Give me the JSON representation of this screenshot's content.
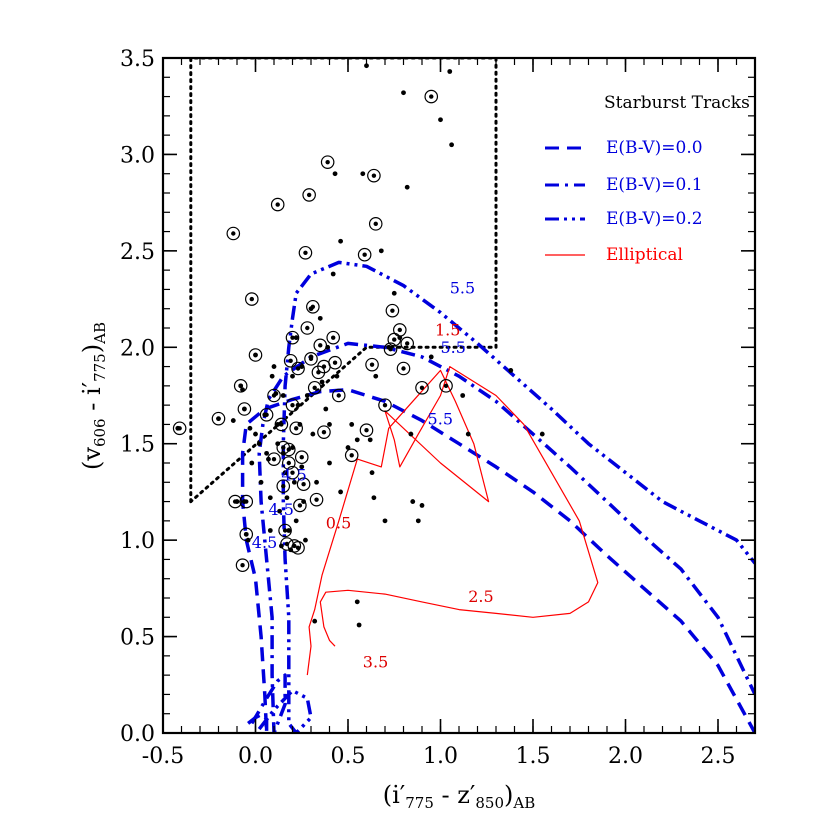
{
  "chart_data": {
    "type": "scatter",
    "title": "",
    "xlabel": {
      "main": "(i′",
      "s1": "775",
      "mid": " - z′",
      "s2": "850",
      "end": ")",
      "s3": "AB"
    },
    "ylabel": {
      "main": "(v",
      "s1": "606",
      "mid": " - i′",
      "s2": "775",
      "end": ")",
      "s3": "AB"
    },
    "xlim": [
      -0.5,
      2.7
    ],
    "ylim": [
      0.0,
      3.5
    ],
    "x_ticks": [
      "-0.5",
      "0.0",
      "0.5",
      "1.0",
      "1.5",
      "2.0",
      "2.5"
    ],
    "y_ticks": [
      "0.0",
      "0.5",
      "1.0",
      "1.5",
      "2.0",
      "2.5",
      "3.0",
      "3.5"
    ],
    "x_tick_values": [
      -0.5,
      0.0,
      0.5,
      1.0,
      1.5,
      2.0,
      2.5
    ],
    "y_tick_values": [
      0.0,
      0.5,
      1.0,
      1.5,
      2.0,
      2.5,
      3.0,
      3.5
    ],
    "legend": {
      "title": "Starburst Tracks",
      "placement": "top-right",
      "entries": [
        {
          "label": "E(B-V)=0.0",
          "color": "#0000dd",
          "style": "dashed"
        },
        {
          "label": "E(B-V)=0.1",
          "color": "#0000dd",
          "style": "dash-dot"
        },
        {
          "label": "E(B-V)=0.2",
          "color": "#0000dd",
          "style": "dash-dot-dot"
        },
        {
          "label": "Elliptical",
          "color": "#ff0000",
          "style": "solid"
        }
      ]
    },
    "series": [
      {
        "name": "E(B-V)=0.0",
        "color": "#0000dd",
        "style": "dashed",
        "width": 3.5,
        "points": [
          [
            -0.04,
            0.05
          ],
          [
            0.0,
            0.08
          ],
          [
            0.04,
            0.1
          ],
          [
            0.06,
            0.07
          ],
          [
            0.06,
            0.0
          ],
          [
            0.05,
            0.2
          ],
          [
            0.03,
            0.5
          ],
          [
            0.0,
            0.8
          ],
          [
            -0.05,
            1.0
          ],
          [
            -0.07,
            1.2
          ],
          [
            -0.07,
            1.45
          ],
          [
            -0.05,
            1.6
          ],
          [
            0.05,
            1.68
          ],
          [
            0.2,
            1.73
          ],
          [
            0.35,
            1.77
          ],
          [
            0.5,
            1.78
          ],
          [
            0.7,
            1.72
          ],
          [
            0.9,
            1.62
          ],
          [
            1.1,
            1.5
          ],
          [
            1.3,
            1.38
          ],
          [
            1.5,
            1.25
          ],
          [
            1.7,
            1.1
          ],
          [
            1.9,
            0.92
          ],
          [
            2.1,
            0.75
          ],
          [
            2.3,
            0.58
          ],
          [
            2.5,
            0.35
          ],
          [
            2.7,
            0.0
          ]
        ]
      },
      {
        "name": "E(B-V)=0.1",
        "color": "#0000dd",
        "style": "dash-dot",
        "width": 3.5,
        "points": [
          [
            -0.02,
            0.05
          ],
          [
            0.06,
            0.18
          ],
          [
            0.12,
            0.27
          ],
          [
            0.16,
            0.3
          ],
          [
            0.16,
            0.15
          ],
          [
            0.12,
            0.05
          ],
          [
            0.1,
            0.0
          ],
          [
            0.09,
            0.3
          ],
          [
            0.09,
            0.6
          ],
          [
            0.06,
            0.9
          ],
          [
            0.03,
            1.2
          ],
          [
            0.02,
            1.45
          ],
          [
            0.04,
            1.6
          ],
          [
            0.07,
            1.73
          ],
          [
            0.15,
            1.85
          ],
          [
            0.3,
            1.95
          ],
          [
            0.5,
            2.02
          ],
          [
            0.7,
            2.0
          ],
          [
            0.9,
            1.95
          ],
          [
            1.1,
            1.85
          ],
          [
            1.3,
            1.72
          ],
          [
            1.5,
            1.55
          ],
          [
            1.7,
            1.38
          ],
          [
            1.9,
            1.2
          ],
          [
            2.1,
            1.02
          ],
          [
            2.3,
            0.85
          ],
          [
            2.5,
            0.6
          ],
          [
            2.7,
            0.2
          ]
        ]
      },
      {
        "name": "E(B-V)=0.2",
        "color": "#0000dd",
        "style": "dash-dot-dot",
        "width": 3.5,
        "points": [
          [
            0.02,
            0.02
          ],
          [
            0.1,
            0.12
          ],
          [
            0.2,
            0.22
          ],
          [
            0.28,
            0.18
          ],
          [
            0.3,
            0.08
          ],
          [
            0.22,
            0.0
          ],
          [
            0.18,
            0.05
          ],
          [
            0.18,
            0.3
          ],
          [
            0.18,
            0.6
          ],
          [
            0.16,
            0.9
          ],
          [
            0.15,
            1.2
          ],
          [
            0.15,
            1.5
          ],
          [
            0.16,
            1.8
          ],
          [
            0.18,
            2.0
          ],
          [
            0.2,
            2.15
          ],
          [
            0.22,
            2.28
          ],
          [
            0.3,
            2.38
          ],
          [
            0.45,
            2.44
          ],
          [
            0.6,
            2.42
          ],
          [
            0.8,
            2.32
          ],
          [
            1.0,
            2.18
          ],
          [
            1.2,
            2.02
          ],
          [
            1.4,
            1.85
          ],
          [
            1.6,
            1.68
          ],
          [
            1.8,
            1.5
          ],
          [
            2.0,
            1.35
          ],
          [
            2.2,
            1.2
          ],
          [
            2.4,
            1.1
          ],
          [
            2.6,
            1.0
          ],
          [
            2.7,
            0.88
          ]
        ]
      },
      {
        "name": "Elliptical",
        "color": "#ff0000",
        "style": "solid",
        "width": 1.2,
        "points": [
          [
            0.43,
            0.45
          ],
          [
            0.4,
            0.48
          ],
          [
            0.37,
            0.55
          ],
          [
            0.35,
            0.68
          ],
          [
            0.38,
            0.73
          ],
          [
            0.5,
            0.74
          ],
          [
            0.7,
            0.72
          ],
          [
            0.9,
            0.68
          ],
          [
            1.1,
            0.64
          ],
          [
            1.3,
            0.62
          ],
          [
            1.5,
            0.6
          ],
          [
            1.7,
            0.62
          ],
          [
            1.8,
            0.68
          ],
          [
            1.85,
            0.78
          ],
          [
            1.75,
            1.1
          ],
          [
            1.6,
            1.35
          ],
          [
            1.45,
            1.6
          ],
          [
            1.3,
            1.75
          ],
          [
            1.1,
            1.87
          ],
          [
            1.05,
            1.9
          ],
          [
            1.0,
            1.75
          ],
          [
            0.88,
            1.55
          ],
          [
            0.78,
            1.38
          ],
          [
            0.75,
            1.52
          ],
          [
            0.7,
            1.67
          ],
          [
            1.0,
            1.4
          ],
          [
            1.26,
            1.2
          ],
          [
            1.18,
            1.5
          ],
          [
            1.08,
            1.72
          ],
          [
            1.0,
            1.88
          ],
          [
            0.85,
            1.72
          ],
          [
            0.72,
            1.58
          ],
          [
            0.68,
            1.38
          ],
          [
            0.55,
            1.42
          ],
          [
            0.45,
            1.1
          ],
          [
            0.36,
            0.82
          ],
          [
            0.32,
            0.64
          ],
          [
            0.29,
            0.55
          ],
          [
            0.3,
            0.45
          ],
          [
            0.28,
            0.3
          ]
        ]
      }
    ],
    "selection_box": {
      "style": "dotted",
      "color": "#000000",
      "points": [
        [
          -0.35,
          1.2
        ],
        [
          -0.35,
          3.5
        ],
        [
          -0.35,
          3.5
        ],
        [
          1.3,
          3.5
        ],
        [
          1.3,
          2.0
        ],
        [
          0.6,
          2.0
        ],
        [
          -0.35,
          1.2
        ]
      ]
    },
    "track_labels": [
      {
        "text": "5.5",
        "x": 1.05,
        "y": 2.28,
        "color": "#0000dd"
      },
      {
        "text": "5.5",
        "x": 1.0,
        "y": 1.97,
        "color": "#0000dd"
      },
      {
        "text": "5.5",
        "x": 0.93,
        "y": 1.6,
        "color": "#0000dd"
      },
      {
        "text": "4.5",
        "x": 0.14,
        "y": 1.31,
        "color": "#0000dd"
      },
      {
        "text": "4.5",
        "x": 0.07,
        "y": 1.13,
        "color": "#0000dd"
      },
      {
        "text": "4.5",
        "x": -0.02,
        "y": 0.96,
        "color": "#0000dd"
      },
      {
        "text": "1.5",
        "x": 0.97,
        "y": 2.06,
        "color": "#dd0000"
      },
      {
        "text": "0.5",
        "x": 0.38,
        "y": 1.06,
        "color": "#dd0000"
      },
      {
        "text": "2.5",
        "x": 1.15,
        "y": 0.68,
        "color": "#dd0000"
      },
      {
        "text": "3.5",
        "x": 0.58,
        "y": 0.34,
        "color": "#dd0000"
      }
    ],
    "dots": [
      [
        -0.42,
        1.58
      ],
      [
        -0.2,
        1.63
      ],
      [
        -0.12,
        1.62
      ],
      [
        -0.1,
        1.2
      ],
      [
        -0.08,
        1.8
      ],
      [
        -0.07,
        1.78
      ],
      [
        -0.06,
        1.68
      ],
      [
        -0.06,
        1.2
      ],
      [
        -0.05,
        1.03
      ],
      [
        -0.04,
        1.0
      ],
      [
        -0.03,
        1.58
      ],
      [
        -0.02,
        1.4
      ],
      [
        0.0,
        1.55
      ],
      [
        0.0,
        1.96
      ],
      [
        0.02,
        1.5
      ],
      [
        0.03,
        1.3
      ],
      [
        0.05,
        1.65
      ],
      [
        0.06,
        1.45
      ],
      [
        0.07,
        1.42
      ],
      [
        0.08,
        1.22
      ],
      [
        0.08,
        1.05
      ],
      [
        0.09,
        1.85
      ],
      [
        0.1,
        1.9
      ],
      [
        0.11,
        1.76
      ],
      [
        0.12,
        1.6
      ],
      [
        0.12,
        1.5
      ],
      [
        0.13,
        1.15
      ],
      [
        0.14,
        0.97
      ],
      [
        0.15,
        1.75
      ],
      [
        0.15,
        1.45
      ],
      [
        0.16,
        1.35
      ],
      [
        0.17,
        1.22
      ],
      [
        0.18,
        1.05
      ],
      [
        0.19,
        0.95
      ],
      [
        0.2,
        1.85
      ],
      [
        0.2,
        1.48
      ],
      [
        0.21,
        1.3
      ],
      [
        0.22,
        1.1
      ],
      [
        0.22,
        2.05
      ],
      [
        0.23,
        1.7
      ],
      [
        0.24,
        1.6
      ],
      [
        0.25,
        1.9
      ],
      [
        0.25,
        1.38
      ],
      [
        0.26,
        1.2
      ],
      [
        0.27,
        1.0
      ],
      [
        0.28,
        1.75
      ],
      [
        0.3,
        1.95
      ],
      [
        0.3,
        2.2
      ],
      [
        0.31,
        1.55
      ],
      [
        0.33,
        1.3
      ],
      [
        0.35,
        2.15
      ],
      [
        0.36,
        1.82
      ],
      [
        0.38,
        1.68
      ],
      [
        0.39,
        2.0
      ],
      [
        0.4,
        1.4
      ],
      [
        0.42,
        2.38
      ],
      [
        0.43,
        2.9
      ],
      [
        0.44,
        1.85
      ],
      [
        0.46,
        2.55
      ],
      [
        0.46,
        1.25
      ],
      [
        0.5,
        1.48
      ],
      [
        0.52,
        1.6
      ],
      [
        0.55,
        1.52
      ],
      [
        0.55,
        0.68
      ],
      [
        0.56,
        0.56
      ],
      [
        0.58,
        2.9
      ],
      [
        0.6,
        3.46
      ],
      [
        0.62,
        1.52
      ],
      [
        0.63,
        1.35
      ],
      [
        0.64,
        1.22
      ],
      [
        0.65,
        1.85
      ],
      [
        0.68,
        2.5
      ],
      [
        0.7,
        1.1
      ],
      [
        0.72,
        2.0
      ],
      [
        0.75,
        2.28
      ],
      [
        0.78,
        2.05
      ],
      [
        0.8,
        3.32
      ],
      [
        0.82,
        2.83
      ],
      [
        0.84,
        1.55
      ],
      [
        0.85,
        1.2
      ],
      [
        0.88,
        1.1
      ],
      [
        0.9,
        1.18
      ],
      [
        0.95,
        1.95
      ],
      [
        1.0,
        3.18
      ],
      [
        1.05,
        3.43
      ],
      [
        1.06,
        3.05
      ],
      [
        1.12,
        1.75
      ],
      [
        1.15,
        1.55
      ],
      [
        1.38,
        1.88
      ],
      [
        1.55,
        1.55
      ],
      [
        0.32,
        0.58
      ],
      [
        0.4,
        1.6
      ]
    ],
    "circled_dots": [
      [
        -0.41,
        1.58
      ],
      [
        -0.2,
        1.63
      ],
      [
        -0.12,
        2.59
      ],
      [
        -0.11,
        1.2
      ],
      [
        -0.08,
        1.8
      ],
      [
        -0.06,
        1.68
      ],
      [
        -0.05,
        1.2
      ],
      [
        -0.05,
        1.03
      ],
      [
        -0.07,
        0.87
      ],
      [
        -0.02,
        2.25
      ],
      [
        0.0,
        1.96
      ],
      [
        0.06,
        1.65
      ],
      [
        0.1,
        1.42
      ],
      [
        0.1,
        1.75
      ],
      [
        0.12,
        2.74
      ],
      [
        0.14,
        1.6
      ],
      [
        0.15,
        1.48
      ],
      [
        0.15,
        1.28
      ],
      [
        0.16,
        1.05
      ],
      [
        0.17,
        0.98
      ],
      [
        0.18,
        1.47
      ],
      [
        0.18,
        1.4
      ],
      [
        0.19,
        1.93
      ],
      [
        0.2,
        2.05
      ],
      [
        0.2,
        1.7
      ],
      [
        0.2,
        1.35
      ],
      [
        0.21,
        0.97
      ],
      [
        0.22,
        1.58
      ],
      [
        0.23,
        1.89
      ],
      [
        0.23,
        0.96
      ],
      [
        0.24,
        1.18
      ],
      [
        0.25,
        1.43
      ],
      [
        0.26,
        1.29
      ],
      [
        0.27,
        2.49
      ],
      [
        0.28,
        2.1
      ],
      [
        0.29,
        2.79
      ],
      [
        0.3,
        1.94
      ],
      [
        0.31,
        2.21
      ],
      [
        0.32,
        1.79
      ],
      [
        0.33,
        1.21
      ],
      [
        0.34,
        1.87
      ],
      [
        0.35,
        2.01
      ],
      [
        0.37,
        1.56
      ],
      [
        0.37,
        1.9
      ],
      [
        0.39,
        2.96
      ],
      [
        0.42,
        2.05
      ],
      [
        0.43,
        1.92
      ],
      [
        0.45,
        1.75
      ],
      [
        0.52,
        1.44
      ],
      [
        0.59,
        2.48
      ],
      [
        0.6,
        1.57
      ],
      [
        0.63,
        1.91
      ],
      [
        0.64,
        2.89
      ],
      [
        0.65,
        2.64
      ],
      [
        0.7,
        1.7
      ],
      [
        0.74,
        2.19
      ],
      [
        0.75,
        2.04
      ],
      [
        0.78,
        2.09
      ],
      [
        0.8,
        1.89
      ],
      [
        0.82,
        2.02
      ],
      [
        0.9,
        1.79
      ],
      [
        0.95,
        3.3
      ],
      [
        1.03,
        1.8
      ],
      [
        0.73,
        1.99
      ]
    ]
  }
}
